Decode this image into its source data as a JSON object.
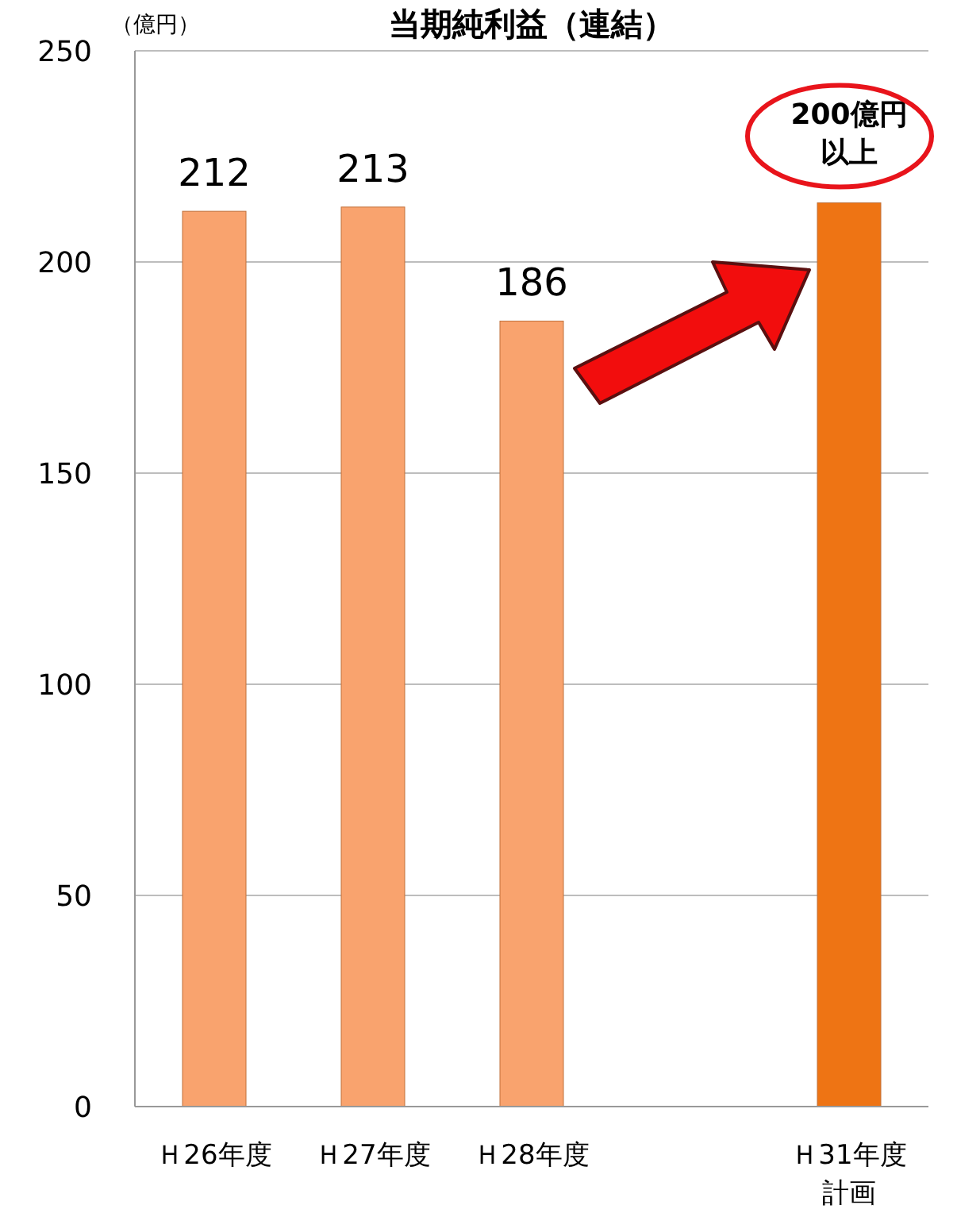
{
  "chart_data": {
    "type": "bar",
    "title": "当期純利益（連結）",
    "ylabel": "（億円）",
    "categories": [
      "Ｈ26年度",
      "Ｈ27年度",
      "Ｈ28年度",
      null,
      "Ｈ31年度計画"
    ],
    "values": [
      212,
      213,
      186,
      null,
      214
    ],
    "colors": [
      "#f9a36e",
      "#f9a36e",
      "#f9a36e",
      null,
      "#ee7414"
    ],
    "value_labels": [
      "212",
      "213",
      "186",
      null,
      null
    ],
    "ylim": [
      0,
      250
    ],
    "yticks": [
      0,
      50,
      100,
      150,
      200,
      250
    ],
    "grid": "y",
    "annotations": [
      "200億円以上"
    ]
  }
}
